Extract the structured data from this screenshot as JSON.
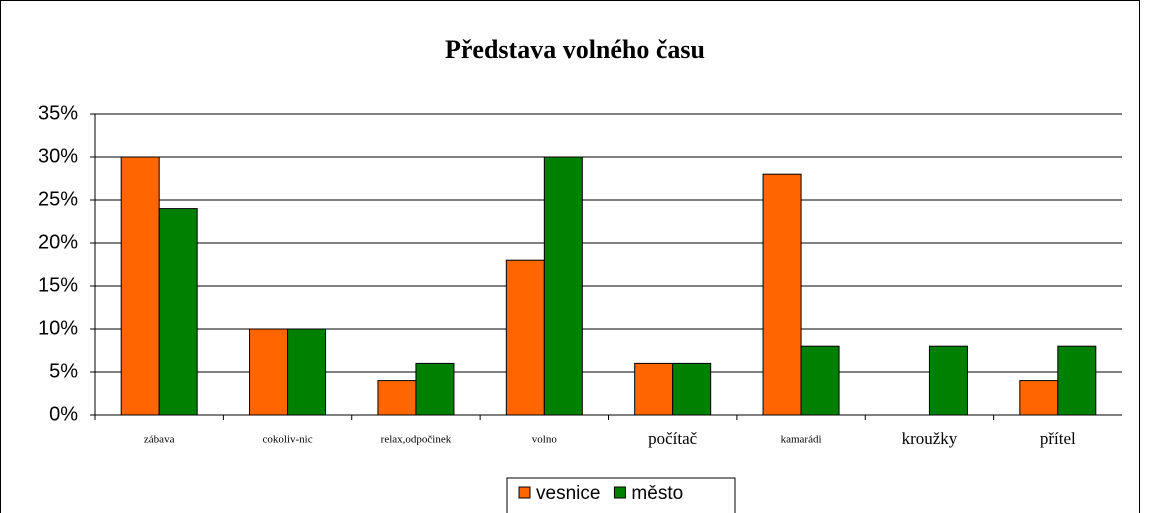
{
  "chart_data": {
    "type": "bar",
    "title": "Představa volného času",
    "categories": [
      "zábava",
      "cokoliv-nic",
      "relax,odpočinek",
      "volno",
      "počítač",
      "kamarádi",
      "kroužky",
      "přítel"
    ],
    "series": [
      {
        "name": "vesnice",
        "color": "#ff6600",
        "values": [
          30,
          10,
          4,
          18,
          6,
          28,
          0,
          4
        ]
      },
      {
        "name": "město",
        "color": "#008000",
        "values": [
          24,
          10,
          6,
          30,
          6,
          8,
          8,
          8
        ]
      }
    ],
    "ylim": [
      0,
      35
    ],
    "yticks": [
      {
        "value": 0,
        "label": "0%"
      },
      {
        "value": 5,
        "label": "5%"
      },
      {
        "value": 10,
        "label": "10%"
      },
      {
        "value": 15,
        "label": "15%"
      },
      {
        "value": 20,
        "label": "20%"
      },
      {
        "value": 25,
        "label": "25%"
      },
      {
        "value": 30,
        "label": "30%"
      },
      {
        "value": 35,
        "label": "35%"
      }
    ],
    "grid": true,
    "legend": "bottom"
  }
}
